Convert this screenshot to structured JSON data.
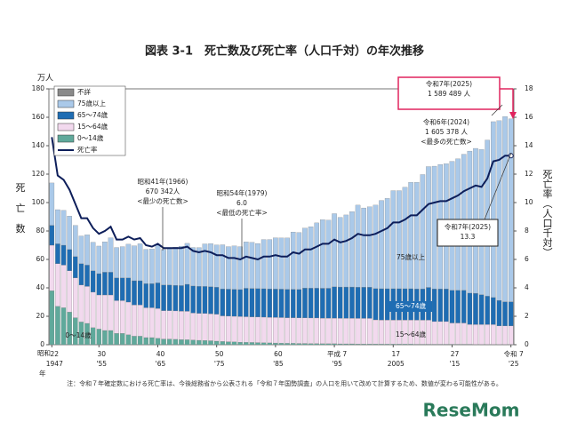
{
  "chart_data": {
    "type": "bar",
    "title": "図表 3-1　死亡数及び死亡率（人口千対）の年次推移",
    "y_unit": "万人",
    "y_label": "死亡数",
    "y2_label": "死亡率（人口千対）",
    "era_start": "昭和",
    "year_suffix": "年",
    "categories": [
      "22",
      null,
      null,
      null,
      null,
      null,
      null,
      null,
      "30",
      null,
      null,
      null,
      null,
      null,
      null,
      null,
      null,
      null,
      "40",
      null,
      null,
      null,
      null,
      null,
      null,
      null,
      null,
      null,
      "50",
      null,
      null,
      null,
      null,
      null,
      null,
      null,
      null,
      null,
      "60",
      null,
      null,
      null,
      null,
      null,
      null,
      null,
      null,
      null,
      "平成 7",
      null,
      null,
      null,
      null,
      null,
      null,
      null,
      null,
      null,
      "17",
      null,
      null,
      null,
      null,
      null,
      null,
      null,
      null,
      null,
      "27",
      null,
      null,
      null,
      null,
      null,
      null,
      null,
      null,
      null,
      "令和 7"
    ],
    "categories_western": [
      "1947",
      null,
      null,
      null,
      null,
      null,
      null,
      null,
      "'55",
      null,
      null,
      null,
      null,
      null,
      null,
      null,
      null,
      null,
      "'65",
      null,
      null,
      null,
      null,
      null,
      null,
      null,
      null,
      null,
      "'75",
      null,
      null,
      null,
      null,
      null,
      null,
      null,
      null,
      null,
      "'85",
      null,
      null,
      null,
      null,
      null,
      null,
      null,
      null,
      null,
      "'95",
      null,
      null,
      null,
      null,
      null,
      null,
      null,
      null,
      null,
      "2005",
      null,
      null,
      null,
      null,
      null,
      null,
      null,
      null,
      null,
      "'15",
      null,
      null,
      null,
      null,
      null,
      null,
      null,
      null,
      null,
      "'25"
    ],
    "ylim": [
      0,
      180
    ],
    "yticks": [
      0,
      20,
      40,
      60,
      80,
      100,
      120,
      140,
      160,
      180
    ],
    "y2lim": [
      0,
      18
    ],
    "y2ticks": [
      0,
      2,
      4,
      6,
      8,
      10,
      12,
      14,
      16,
      18
    ],
    "series": [
      {
        "name": "0～14歳",
        "color": "#5fa99b",
        "values": [
          38,
          27,
          26,
          23,
          19,
          16,
          15,
          12,
          11,
          10,
          10,
          8,
          8,
          7,
          6,
          6,
          5,
          5,
          4.5,
          4,
          4,
          3.8,
          3.6,
          3.5,
          3.3,
          3.1,
          3,
          2.8,
          2.5,
          2.3,
          2.1,
          2,
          1.8,
          1.7,
          1.6,
          1.5,
          1.4,
          1.3,
          1.2,
          1.1,
          1.0,
          1.0,
          0.9,
          0.9,
          0.8,
          0.8,
          0.7,
          0.7,
          0.7,
          0.6,
          0.6,
          0.6,
          0.5,
          0.5,
          0.5,
          0.5,
          0.4,
          0.4,
          0.4,
          0.4,
          0.4,
          0.4,
          0.3,
          0.3,
          0.3,
          0.3,
          0.3,
          0.3,
          0.3,
          0.3,
          0.3,
          0.3,
          0.2,
          0.2,
          0.2,
          0.2,
          0.2,
          0.2,
          0.2
        ]
      },
      {
        "name": "15～64歳",
        "color": "#f2d9ee",
        "values": [
          32,
          30,
          30,
          29,
          28,
          26,
          26,
          25,
          24,
          25,
          25,
          23,
          23,
          23,
          22,
          22,
          21,
          21,
          21,
          20,
          20,
          20,
          20,
          20,
          19,
          19,
          19,
          19,
          19,
          18,
          18,
          18,
          18,
          18,
          18,
          18,
          18,
          18,
          18,
          18,
          18,
          18,
          18,
          18,
          18,
          18,
          18,
          18,
          18,
          18,
          18,
          18,
          18,
          18,
          18,
          17,
          17,
          17,
          17,
          17,
          17,
          17,
          17,
          17,
          17,
          16,
          16,
          16,
          15,
          15,
          15,
          14,
          14,
          14,
          14,
          14,
          13,
          13,
          13
        ]
      },
      {
        "name": "65～74歳",
        "color": "#1f6db3",
        "values": [
          14,
          14,
          14,
          15,
          15,
          15,
          15,
          15,
          15,
          16,
          16,
          16,
          16,
          17,
          17,
          17,
          17,
          17,
          18,
          18,
          18,
          18,
          18,
          19,
          19,
          19,
          19,
          19,
          19,
          19,
          19,
          19,
          19,
          20,
          20,
          20,
          20,
          20,
          20,
          20,
          20,
          20,
          20,
          21,
          21,
          21,
          21,
          21,
          22,
          22,
          22,
          22,
          22,
          22,
          22,
          22,
          22,
          22,
          22,
          22,
          22,
          22,
          22,
          22,
          23,
          23,
          23,
          23,
          23,
          23,
          23,
          22,
          22,
          21,
          20,
          19,
          18,
          17,
          17
        ]
      },
      {
        "name": "75歳以上",
        "color": "#aac9e9",
        "values": [
          29.8,
          24,
          24.5,
          23.5,
          21.9,
          19.5,
          21.3,
          20.1,
          19.4,
          21.4,
          24.2,
          21.4,
          22,
          23.7,
          24.6,
          26,
          24.1,
          24.3,
          26.5,
          25,
          25.5,
          26.8,
          27.7,
          28.8,
          27.1,
          27.2,
          29.9,
          30.3,
          29.7,
          31,
          29.9,
          30.5,
          30.2,
          32.6,
          32.4,
          31.7,
          34.6,
          34.7,
          36,
          36,
          36.1,
          40.3,
          40,
          42.1,
          43.2,
          45.9,
          48.2,
          47.9,
          51.5,
          49,
          50.7,
          53,
          57.7,
          55.7,
          56.5,
          58.7,
          62.1,
          63.5,
          69,
          69,
          71.4,
          74.8,
          74.9,
          80.4,
          85,
          86.3,
          87.5,
          88,
          90.7,
          92.5,
          95.7,
          99.9,
          101.9,
          102.1,
          109.8,
          123.7,
          126.4,
          130.3,
          128.7
        ]
      },
      {
        "name": "不詳",
        "color": "#8a8a8a",
        "values": [
          0,
          0,
          0,
          0,
          0,
          0,
          0,
          0,
          0,
          0,
          0,
          0,
          0,
          0,
          0,
          0,
          0,
          0,
          0,
          0,
          0,
          0,
          0,
          0,
          0,
          0,
          0,
          0,
          0,
          0,
          0,
          0,
          0,
          0,
          0,
          0,
          0,
          0,
          0,
          0,
          0,
          0,
          0,
          0,
          0,
          0,
          0,
          0,
          0,
          0,
          0,
          0,
          0,
          0,
          0,
          0,
          0,
          0,
          0,
          0,
          0,
          0,
          0,
          0,
          0,
          0,
          0,
          0,
          0,
          0,
          0,
          0,
          0,
          0,
          0,
          0,
          0,
          0,
          0
        ]
      },
      {
        "name": "死亡率",
        "color": "#0d1e5a",
        "axis": "y2",
        "type": "line",
        "values": [
          14.6,
          11.9,
          11.6,
          10.9,
          9.9,
          8.9,
          8.9,
          8.2,
          7.8,
          8.0,
          8.3,
          7.4,
          7.4,
          7.6,
          7.4,
          7.5,
          7.0,
          6.9,
          7.1,
          6.8,
          6.8,
          6.8,
          6.8,
          6.9,
          6.6,
          6.5,
          6.6,
          6.5,
          6.3,
          6.3,
          6.1,
          6.1,
          6.0,
          6.2,
          6.1,
          6.0,
          6.2,
          6.2,
          6.3,
          6.2,
          6.2,
          6.5,
          6.4,
          6.7,
          6.7,
          6.9,
          7.1,
          7.1,
          7.4,
          7.2,
          7.3,
          7.5,
          7.8,
          7.7,
          7.7,
          7.8,
          8.0,
          8.2,
          8.6,
          8.6,
          8.8,
          9.1,
          9.1,
          9.5,
          9.9,
          10.0,
          10.1,
          10.1,
          10.3,
          10.5,
          10.8,
          11.0,
          11.2,
          11.1,
          11.7,
          12.9,
          13.0,
          13.3,
          13.3
        ]
      }
    ],
    "legend_order": [
      4,
      3,
      2,
      1,
      0,
      5
    ],
    "annotations": [
      {
        "lines": [
          "昭和41年(1966)",
          "670 342人",
          "<最少の死亡数>"
        ]
      },
      {
        "lines": [
          "昭和54年(1979)",
          "6.0",
          "<最低の死亡率>"
        ]
      },
      {
        "lines": [
          "令和6年(2024)",
          "1 605 378 人",
          "<最多の死亡数>"
        ]
      },
      {
        "lines": [
          "令和7年(2025)",
          "1 589 489 人"
        ]
      },
      {
        "lines": [
          "令和7年(2025)",
          "13.3"
        ]
      }
    ],
    "segment_labels": [
      "75歳以上",
      "65～74歳",
      "15～64歳",
      "0～14歳"
    ],
    "note": "注：令和７年確定数における死亡率は、今後総務省から公表される「令和７年国勢調査」の人口を用いて改めて計算するため、数値が変わる可能性がある。",
    "logo": "ReseMom"
  }
}
